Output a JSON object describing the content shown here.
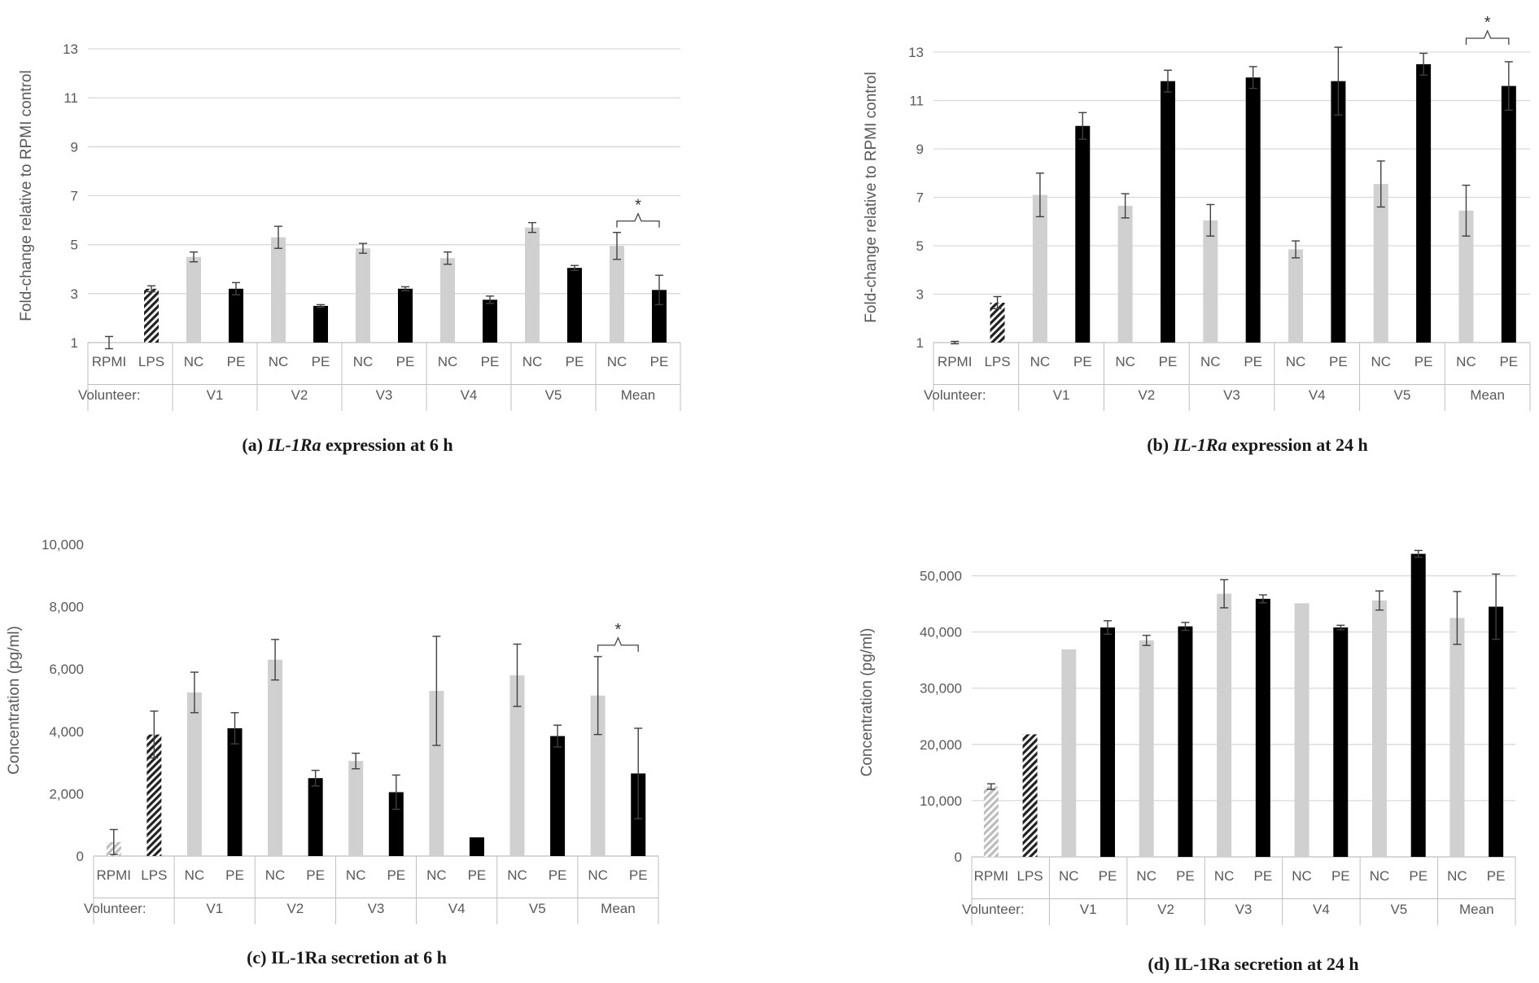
{
  "colors": {
    "nc": "#d0d0d0",
    "pe": "#000000",
    "grid": "#d9d9d9",
    "axis": "#bfbfbf",
    "error": "#404040"
  },
  "panels": [
    {
      "id": "a",
      "caption_prefix": "(a) ",
      "caption_italic": "IL-1Ra",
      "caption_suffix": " expression at 6 h",
      "chart_data": {
        "type": "bar",
        "title": "(a) IL-1Ra expression at 6 h",
        "ylabel": "Fold-change relative to RPMI control",
        "ylim": [
          1,
          13
        ],
        "yticks": [
          "1",
          "3",
          "5",
          "7",
          "9",
          "11",
          "13"
        ],
        "ytick_values": [
          1,
          3,
          5,
          7,
          9,
          11,
          13
        ],
        "grid": true,
        "categories": [
          "RPMI",
          "LPS",
          "NC",
          "PE",
          "NC",
          "PE",
          "NC",
          "PE",
          "NC",
          "PE",
          "NC",
          "PE",
          "NC",
          "PE"
        ],
        "bar_kind": [
          "rpmi",
          "lps",
          "nc",
          "pe",
          "nc",
          "pe",
          "nc",
          "pe",
          "nc",
          "pe",
          "nc",
          "pe",
          "nc",
          "pe"
        ],
        "values": [
          1.0,
          3.2,
          4.5,
          3.2,
          5.3,
          2.5,
          4.85,
          3.2,
          4.45,
          2.75,
          5.7,
          4.05,
          4.95,
          3.15
        ],
        "errors": [
          0.25,
          0.12,
          0.2,
          0.25,
          0.45,
          0.05,
          0.2,
          0.08,
          0.25,
          0.15,
          0.2,
          0.1,
          0.55,
          0.6
        ],
        "group_label": "Volunteer:",
        "groups": [
          "V1",
          "V2",
          "V3",
          "V4",
          "V5",
          "Mean"
        ],
        "significance": {
          "from": 12,
          "to": 13,
          "label": "*"
        }
      }
    },
    {
      "id": "b",
      "caption_prefix": "(b) ",
      "caption_italic": "IL-1Ra",
      "caption_suffix": " expression at  24 h",
      "chart_data": {
        "type": "bar",
        "title": "(b) IL-1Ra expression at 24 h",
        "ylabel": "Fold-change relative to RPMI control",
        "ylim": [
          1,
          13
        ],
        "yticks": [
          "1",
          "3",
          "5",
          "7",
          "9",
          "11",
          "13"
        ],
        "ytick_values": [
          1,
          3,
          5,
          7,
          9,
          11,
          13
        ],
        "grid": true,
        "categories": [
          "RPMI",
          "LPS",
          "NC",
          "PE",
          "NC",
          "PE",
          "NC",
          "PE",
          "NC",
          "PE",
          "NC",
          "PE",
          "NC",
          "PE"
        ],
        "bar_kind": [
          "rpmi",
          "lps",
          "nc",
          "pe",
          "nc",
          "pe",
          "nc",
          "pe",
          "nc",
          "pe",
          "nc",
          "pe",
          "nc",
          "pe"
        ],
        "values": [
          1.0,
          2.65,
          7.1,
          9.95,
          6.65,
          11.8,
          6.05,
          11.95,
          4.85,
          11.8,
          7.55,
          12.5,
          6.45,
          11.6
        ],
        "errors": [
          0.05,
          0.25,
          0.9,
          0.55,
          0.5,
          0.45,
          0.65,
          0.45,
          0.35,
          1.4,
          0.95,
          0.45,
          1.05,
          1.0
        ],
        "group_label": "Volunteer:",
        "groups": [
          "V1",
          "V2",
          "V3",
          "V4",
          "V5",
          "Mean"
        ],
        "significance": {
          "from": 12,
          "to": 13,
          "label": "*"
        }
      }
    },
    {
      "id": "c",
      "caption_prefix": "(c) IL-1Ra secretion at 6 h",
      "caption_italic": "",
      "caption_suffix": "",
      "chart_data": {
        "type": "bar",
        "title": "(c) IL-1Ra secretion at 6 h",
        "ylabel": "Concentration (pg/ml)",
        "ylim": [
          0,
          10000
        ],
        "yticks": [
          "0",
          "2,000",
          "4,000",
          "6,000",
          "8,000",
          "10,000"
        ],
        "ytick_values": [
          0,
          2000,
          4000,
          6000,
          8000,
          10000
        ],
        "grid": false,
        "categories": [
          "RPMI",
          "LPS",
          "NC",
          "PE",
          "NC",
          "PE",
          "NC",
          "PE",
          "NC",
          "PE",
          "NC",
          "PE",
          "NC",
          "PE"
        ],
        "bar_kind": [
          "rpmi",
          "lps",
          "nc",
          "pe",
          "nc",
          "pe",
          "nc",
          "pe",
          "nc",
          "pe",
          "nc",
          "pe",
          "nc",
          "pe"
        ],
        "values": [
          450,
          3900,
          5250,
          4100,
          6300,
          2500,
          3050,
          2050,
          5300,
          600,
          5800,
          3850,
          5150,
          2650
        ],
        "errors": [
          400,
          750,
          650,
          500,
          650,
          250,
          250,
          550,
          1750,
          0,
          1000,
          350,
          1250,
          1450
        ],
        "group_label": "Volunteer:",
        "groups": [
          "V1",
          "V2",
          "V3",
          "V4",
          "V5",
          "Mean"
        ],
        "significance": {
          "from": 12,
          "to": 13,
          "label": "*"
        }
      }
    },
    {
      "id": "d",
      "caption_prefix": "(d) IL-1Ra secretion at 24 h",
      "caption_italic": "",
      "caption_suffix": "",
      "chart_data": {
        "type": "bar",
        "title": "(d) IL-1Ra secretion at 24 h",
        "ylabel": "Concentration (pg/ml)",
        "ylim": [
          0,
          55000
        ],
        "yticks": [
          "0",
          "10,000",
          "20,000",
          "30,000",
          "40,000",
          "50,000"
        ],
        "ytick_values": [
          0,
          10000,
          20000,
          30000,
          40000,
          50000
        ],
        "grid": true,
        "categories": [
          "RPMI",
          "LPS",
          "NC",
          "PE",
          "NC",
          "PE",
          "NC",
          "PE",
          "NC",
          "PE",
          "NC",
          "PE",
          "NC",
          "PE"
        ],
        "bar_kind": [
          "rpmi",
          "lps",
          "nc",
          "pe",
          "nc",
          "pe",
          "nc",
          "pe",
          "nc",
          "pe",
          "nc",
          "pe",
          "nc",
          "pe"
        ],
        "values": [
          12500,
          21800,
          36900,
          40800,
          38500,
          41000,
          46800,
          45900,
          45100,
          40800,
          45600,
          53900,
          42500,
          44500
        ],
        "errors": [
          500,
          0,
          0,
          1200,
          900,
          700,
          2500,
          700,
          0,
          400,
          1700,
          600,
          4700,
          5800
        ],
        "group_label": "Volunteer:",
        "groups": [
          "V1",
          "V2",
          "V3",
          "V4",
          "V5",
          "Mean"
        ],
        "significance": null
      }
    }
  ]
}
